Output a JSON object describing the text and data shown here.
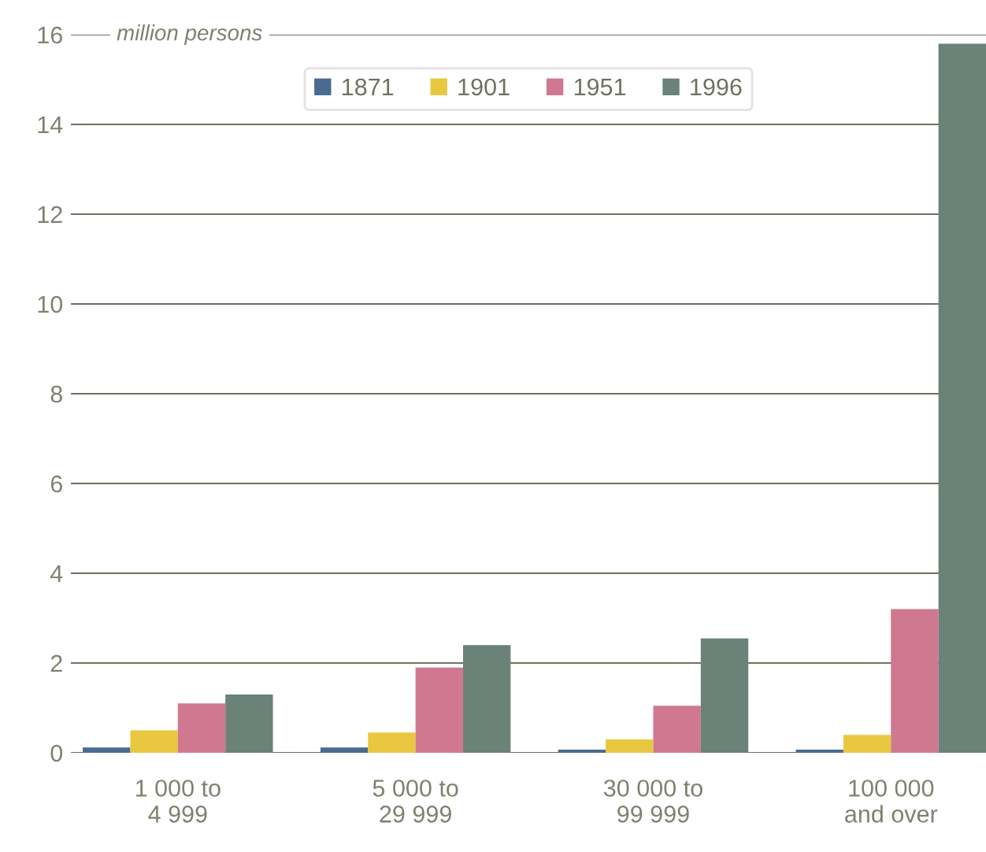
{
  "chart_data": {
    "type": "bar",
    "ylabel": "million persons",
    "categories": [
      "1 000 to\n4 999",
      "5 000 to\n29 999",
      "30 000 to\n99 999",
      "100 000\nand over"
    ],
    "series": [
      {
        "name": "1871",
        "color": "#4a6a90",
        "values": [
          0.12,
          0.12,
          0.07,
          0.07
        ]
      },
      {
        "name": "1901",
        "color": "#e8c840",
        "values": [
          0.5,
          0.45,
          0.3,
          0.4
        ]
      },
      {
        "name": "1951",
        "color": "#d07890",
        "values": [
          1.1,
          1.9,
          1.05,
          3.2
        ]
      },
      {
        "name": "1996",
        "color": "#6a8278",
        "values": [
          1.3,
          2.4,
          2.55,
          15.8
        ]
      }
    ],
    "ylim": [
      0,
      16
    ],
    "yticks": [
      0,
      2,
      4,
      6,
      8,
      10,
      12,
      14,
      16
    ],
    "grid": "y",
    "legend": "top"
  }
}
